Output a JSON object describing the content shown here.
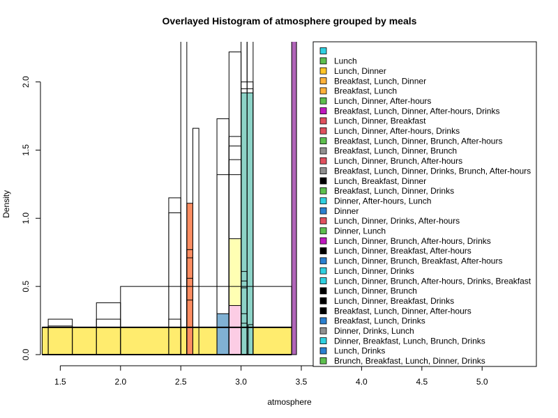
{
  "chart_data": {
    "type": "bar",
    "title": "Overlayed Histogram of atmosphere grouped by meals",
    "xlabel": "atmosphere",
    "ylabel": "Density",
    "xlim": [
      1.35,
      5.05
    ],
    "ylim": [
      0,
      2.3
    ],
    "x_ticks": [
      1.5,
      2.0,
      2.5,
      3.0,
      3.5,
      4.0,
      4.5,
      5.0
    ],
    "x_tick_labels": [
      "1.5",
      "2.0",
      "2.5",
      "3.0",
      "3.5",
      "4.0",
      "4.5",
      "5.0"
    ],
    "y_ticks": [
      0.0,
      0.5,
      1.0,
      1.5,
      2.0
    ],
    "y_tick_labels": [
      "0.0",
      "0.5",
      "1.0",
      "1.5",
      "2.0"
    ],
    "grid": false,
    "legend_position": "right",
    "series": [
      {
        "name": "",
        "color": "#2FD0E0",
        "bars": [
          {
            "x0": 3.42,
            "x1": 3.46,
            "y": 2.3
          }
        ]
      },
      {
        "name": "Lunch",
        "color": "#5CBF4E",
        "bars": []
      },
      {
        "name": "Lunch, Dinner",
        "color": "#FFC526",
        "bars": []
      },
      {
        "name": "Breakfast, Lunch, Dinner",
        "color": "#FFB13A",
        "bars": []
      },
      {
        "name": "Breakfast, Lunch",
        "color": "#FFB13A",
        "bars": []
      },
      {
        "name": "Lunch, Dinner, After-hours",
        "color": "#5CBF4E",
        "bars": []
      },
      {
        "name": "Breakfast, Lunch, Dinner, After-hours, Drinks",
        "color": "#C018C0",
        "bars": []
      },
      {
        "name": "Lunch, Dinner, Breakfast",
        "color": "#E0505E",
        "bars": []
      },
      {
        "name": "Lunch, Dinner, After-hours, Drinks",
        "color": "#E0505E",
        "bars": []
      },
      {
        "name": "Breakfast, Lunch, Dinner, Brunch, After-hours",
        "color": "#5CBF4E",
        "bars": []
      },
      {
        "name": "Breakfast, Lunch, Dinner, Brunch",
        "color": "#909090",
        "bars": []
      },
      {
        "name": "Lunch, Dinner, Brunch, After-hours",
        "color": "#E0505E",
        "bars": []
      },
      {
        "name": "Breakfast, Lunch, Dinner, Drinks, Brunch, After-hours",
        "color": "#909090",
        "bars": []
      },
      {
        "name": "Lunch, Breakfast, Dinner",
        "color": "#000000",
        "bars": []
      },
      {
        "name": "Breakfast, Lunch, Dinner, Drinks",
        "color": "#5CBF4E",
        "bars": []
      },
      {
        "name": "Dinner, After-hours, Lunch",
        "color": "#2FD0E0",
        "bars": []
      },
      {
        "name": "Dinner",
        "color": "#2A80D0",
        "bars": []
      },
      {
        "name": "Lunch, Dinner, Drinks, After-hours",
        "color": "#E0505E",
        "bars": []
      },
      {
        "name": "Dinner, Lunch",
        "color": "#5CBF4E",
        "bars": []
      },
      {
        "name": "Lunch, Dinner, Brunch, After-hours, Drinks",
        "color": "#C018C0",
        "bars": []
      },
      {
        "name": "Lunch, Dinner, Breakfast, After-hours",
        "color": "#000000",
        "bars": []
      },
      {
        "name": "Lunch, Dinner, Brunch, Breakfast, After-hours",
        "color": "#2A80D0",
        "bars": []
      },
      {
        "name": "Lunch, Dinner, Drinks",
        "color": "#2FD0E0",
        "bars": []
      },
      {
        "name": "Lunch, Dinner, Brunch, After-hours, Drinks, Breakfast",
        "color": "#2FD0E0",
        "bars": []
      },
      {
        "name": "Lunch, Dinner, Brunch",
        "color": "#000000",
        "bars": []
      },
      {
        "name": "Lunch, Dinner, Breakfast, Drinks",
        "color": "#000000",
        "bars": []
      },
      {
        "name": "Breakfast, Lunch, Dinner, After-hours",
        "color": "#000000",
        "bars": []
      },
      {
        "name": "Breakfast, Lunch, Drinks",
        "color": "#2A80D0",
        "bars": []
      },
      {
        "name": "Dinner, Drinks, Lunch",
        "color": "#909090",
        "bars": []
      },
      {
        "name": "Dinner, Breakfast, Lunch, Brunch, Drinks",
        "color": "#2FD0E0",
        "bars": []
      },
      {
        "name": "Lunch, Drinks",
        "color": "#2A80D0",
        "bars": []
      },
      {
        "name": "Brunch, Breakfast, Lunch, Dinner, Drinks",
        "color": "#5CBF4E",
        "bars": []
      }
    ],
    "overlay_bars": [
      {
        "x0": 1.35,
        "x1": 3.42,
        "y": 0.2,
        "fill": "#FFEC6E",
        "stroke": "#000000"
      },
      {
        "x0": 2.55,
        "x1": 2.6,
        "y": 0.91,
        "fill": "#A6D854",
        "stroke": "#000000"
      },
      {
        "x0": 2.55,
        "x1": 2.6,
        "y": 1.11,
        "fill": "#FC8D62",
        "stroke": "#000000"
      },
      {
        "x0": 2.8,
        "x1": 2.9,
        "y": 0.3,
        "fill": "#80B1D3",
        "stroke": "#000000"
      },
      {
        "x0": 2.9,
        "x1": 3.0,
        "y": 0.85,
        "fill": "#FFFFB3",
        "stroke": "#000000"
      },
      {
        "x0": 2.9,
        "x1": 3.0,
        "y": 0.36,
        "fill": "#FCCDE5",
        "stroke": "#000000"
      },
      {
        "x0": 3.0,
        "x1": 3.05,
        "y": 0.26,
        "fill": "#BC80BD",
        "stroke": "#000000"
      },
      {
        "x0": 3.0,
        "x1": 3.05,
        "y": 0.58,
        "fill": "#D9D9D9",
        "stroke": "#000000"
      },
      {
        "x0": 3.0,
        "x1": 3.1,
        "y": 1.11,
        "fill": "#FDB462",
        "stroke": "#000000"
      },
      {
        "x0": 3.0,
        "x1": 3.1,
        "y": 1.92,
        "fill": "#8DD3C7",
        "stroke": "#000000"
      },
      {
        "x0": 3.42,
        "x1": 3.46,
        "y": 2.3,
        "fill": "#B065B8",
        "stroke": "#000000"
      }
    ],
    "outline_bars": [
      {
        "x0": 1.4,
        "x1": 1.6,
        "y": 0.26
      },
      {
        "x0": 1.4,
        "x1": 1.6,
        "y": 0.21
      },
      {
        "x0": 1.8,
        "x1": 2.0,
        "y": 0.38
      },
      {
        "x0": 1.8,
        "x1": 2.0,
        "y": 0.26
      },
      {
        "x0": 2.0,
        "x1": 3.42,
        "y": 0.5
      },
      {
        "x0": 2.4,
        "x1": 2.5,
        "y": 1.15
      },
      {
        "x0": 2.4,
        "x1": 2.5,
        "y": 1.04
      },
      {
        "x0": 2.4,
        "x1": 2.5,
        "y": 0.26
      },
      {
        "x0": 2.5,
        "x1": 2.55,
        "y": 2.3
      },
      {
        "x0": 2.6,
        "x1": 2.65,
        "y": 1.66
      },
      {
        "x0": 2.8,
        "x1": 2.9,
        "y": 1.73
      },
      {
        "x0": 2.8,
        "x1": 2.9,
        "y": 1.32
      },
      {
        "x0": 2.9,
        "x1": 3.0,
        "y": 2.22
      },
      {
        "x0": 2.9,
        "x1": 3.0,
        "y": 1.6
      },
      {
        "x0": 2.9,
        "x1": 3.0,
        "y": 1.53
      },
      {
        "x0": 2.9,
        "x1": 3.0,
        "y": 1.43
      },
      {
        "x0": 2.9,
        "x1": 3.0,
        "y": 1.32
      },
      {
        "x0": 3.0,
        "x1": 3.05,
        "y": 2.3
      },
      {
        "x0": 3.05,
        "x1": 3.1,
        "y": 2.3
      },
      {
        "x0": 3.0,
        "x1": 3.1,
        "y": 2.0
      },
      {
        "x0": 3.0,
        "x1": 3.1,
        "y": 1.95
      },
      {
        "x0": 3.0,
        "x1": 3.05,
        "y": 0.61
      },
      {
        "x0": 3.0,
        "x1": 3.05,
        "y": 0.54
      },
      {
        "x0": 3.0,
        "x1": 3.05,
        "y": 0.49
      },
      {
        "x0": 3.0,
        "x1": 3.05,
        "y": 0.3
      },
      {
        "x0": 3.0,
        "x1": 3.05,
        "y": 0.23
      },
      {
        "x0": 3.06,
        "x1": 3.1,
        "y": 0.22
      },
      {
        "x0": 2.55,
        "x1": 2.6,
        "y": 0.77
      },
      {
        "x0": 2.55,
        "x1": 2.6,
        "y": 0.71
      },
      {
        "x0": 2.55,
        "x1": 2.6,
        "y": 0.56
      },
      {
        "x0": 2.55,
        "x1": 2.6,
        "y": 0.4
      }
    ],
    "baseline_line": {
      "y": 0.2,
      "x0": 1.35,
      "x1": 3.42
    }
  }
}
